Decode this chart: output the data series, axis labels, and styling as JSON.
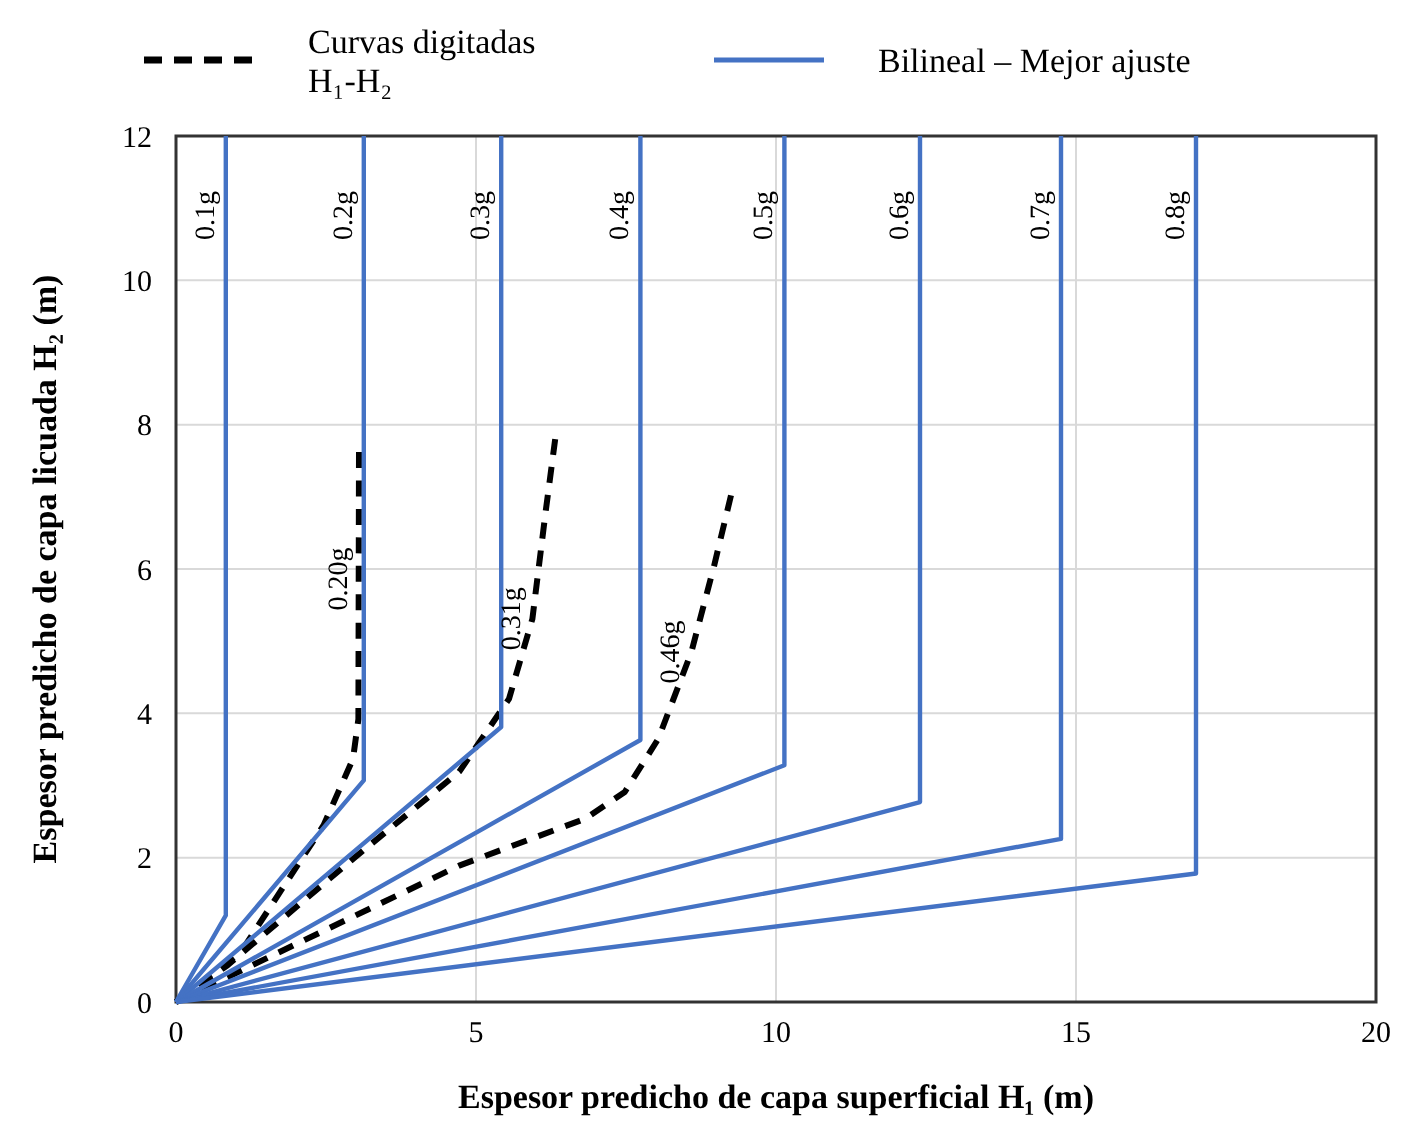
{
  "chart_data": {
    "type": "line",
    "xlabel": "Espesor predicho de capa superficial H₁ (m)",
    "ylabel": "Espesor predicho de capa licuada H₂ (m)",
    "xlim": [
      0,
      20
    ],
    "ylim": [
      0,
      12
    ],
    "xticks": [
      0,
      5,
      10,
      15,
      20
    ],
    "yticks": [
      0,
      2,
      4,
      6,
      8,
      10,
      12
    ],
    "grid": true,
    "legend": "top",
    "marker": "none",
    "series": [
      {
        "name": "Curvas digitadas H₁-H₂",
        "color": "#000000",
        "line_style": "dashed",
        "x": [
          0,
          1.08,
          2.46,
          2.95,
          3.04,
          3.05
        ],
        "values": [
          0,
          0.69,
          2.45,
          3.37,
          3.92,
          7.62
        ]
      },
      {
        "color": "#000000",
        "line_style": "dashed",
        "x": [
          0,
          0.86,
          2.96,
          4.72,
          5.55,
          5.94,
          6.16,
          6.32
        ],
        "values": [
          0,
          0.51,
          1.99,
          3.19,
          4.2,
          5.31,
          6.79,
          7.8
        ]
      },
      {
        "color": "#000000",
        "line_style": "dashed",
        "x": [
          0,
          1.97,
          4.72,
          6.82,
          7.48,
          8.04,
          8.59,
          8.97,
          9.25
        ],
        "values": [
          0,
          0.79,
          1.89,
          2.54,
          2.91,
          3.65,
          4.85,
          6.05,
          7.02
        ]
      },
      {
        "name": "Bilineal – Mejor ajuste",
        "color": "#4472c4",
        "line_style": "solid",
        "x": [
          0,
          0.83,
          0.83
        ],
        "values": [
          0,
          1.2,
          12
        ]
      },
      {
        "color": "#4472c4",
        "line_style": "solid",
        "x": [
          0,
          3.13,
          3.13
        ],
        "values": [
          0,
          3.07,
          12
        ]
      },
      {
        "color": "#4472c4",
        "line_style": "solid",
        "x": [
          0,
          5.42,
          5.42
        ],
        "values": [
          0,
          3.81,
          12
        ]
      },
      {
        "color": "#4472c4",
        "line_style": "solid",
        "x": [
          0,
          7.74,
          7.74
        ],
        "values": [
          0,
          3.63,
          12
        ]
      },
      {
        "color": "#4472c4",
        "line_style": "solid",
        "x": [
          0,
          10.14,
          10.14
        ],
        "values": [
          0,
          3.28,
          12
        ]
      },
      {
        "color": "#4472c4",
        "line_style": "solid",
        "x": [
          0,
          12.4,
          12.4
        ],
        "values": [
          0,
          2.77,
          12
        ]
      },
      {
        "color": "#4472c4",
        "line_style": "solid",
        "x": [
          0,
          14.75,
          14.75
        ],
        "values": [
          0,
          2.26,
          12
        ]
      },
      {
        "color": "#4472c4",
        "line_style": "solid",
        "x": [
          0,
          17.0,
          17.0
        ],
        "values": [
          0,
          1.78,
          12
        ]
      }
    ],
    "annotations": [
      {
        "text": "0.1g",
        "x": 0.83,
        "y": 10.9
      },
      {
        "text": "0.2g",
        "x": 3.13,
        "y": 10.9
      },
      {
        "text": "0.3g",
        "x": 5.42,
        "y": 10.9
      },
      {
        "text": "0.4g",
        "x": 7.74,
        "y": 10.9
      },
      {
        "text": "0.5g",
        "x": 10.14,
        "y": 10.9
      },
      {
        "text": "0.6g",
        "x": 12.4,
        "y": 10.9
      },
      {
        "text": "0.7g",
        "x": 14.75,
        "y": 10.9
      },
      {
        "text": "0.8g",
        "x": 17.0,
        "y": 10.9
      },
      {
        "text": "0.20g",
        "x": 3.05,
        "y": 5.86
      },
      {
        "text": "0.31g",
        "x": 5.94,
        "y": 5.31
      },
      {
        "text": "0.46g",
        "x": 8.59,
        "y": 4.85
      }
    ]
  }
}
